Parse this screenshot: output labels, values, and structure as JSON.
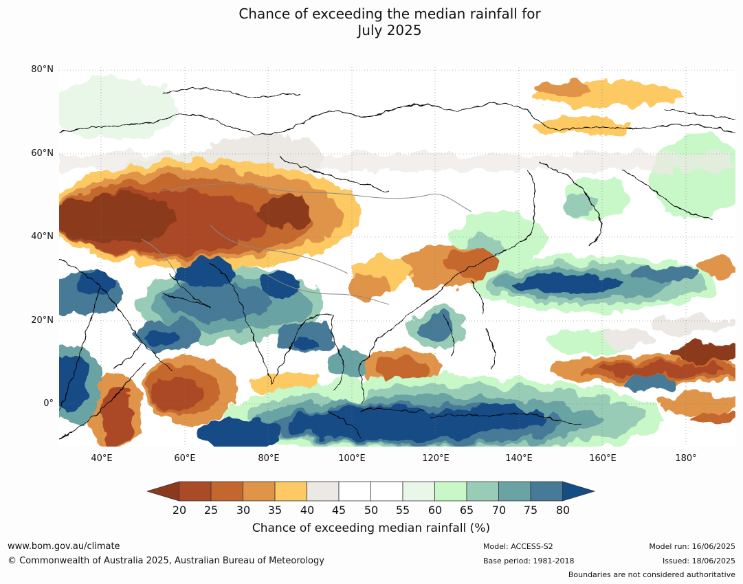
{
  "title": {
    "line1": "Chance of exceeding the median rainfall for",
    "line2": "July 2025"
  },
  "map": {
    "lat_labels": [
      "80°N",
      "60°N",
      "40°N",
      "20°N",
      "0°"
    ],
    "lon_labels": [
      "40°E",
      "60°E",
      "80°E",
      "100°E",
      "120°E",
      "140°E",
      "160°E",
      "180°"
    ],
    "extent": {
      "lon_min": 30,
      "lon_max": 192,
      "lat_min": -10,
      "lat_max": 80
    }
  },
  "legend": {
    "title": "Chance of exceeding median rainfall (%)",
    "ticks": [
      "20",
      "25",
      "30",
      "35",
      "40",
      "45",
      "50",
      "55",
      "60",
      "65",
      "70",
      "75",
      "80"
    ],
    "colors": [
      "#8b3a1e",
      "#ab4a26",
      "#c4672f",
      "#e09448",
      "#fcc964",
      "#ece8e4",
      "#ffffff",
      "#ffffff",
      "#e8f7e8",
      "#c8f7c8",
      "#99ccb6",
      "#6aa3a3",
      "#467a96",
      "#144c86"
    ]
  },
  "footer": {
    "url": "www.bom.gov.au/climate",
    "copyright": "© Commonwealth of Australia 2025, Australian Bureau of Meteorology",
    "model": "Model: ACCESS-S2",
    "base_period": "Base period: 1981-2018",
    "model_run": "Model run: 16/06/2025",
    "issued": "Issued: 18/06/2025",
    "disclaimer": "Boundaries are not considered authoritative"
  }
}
